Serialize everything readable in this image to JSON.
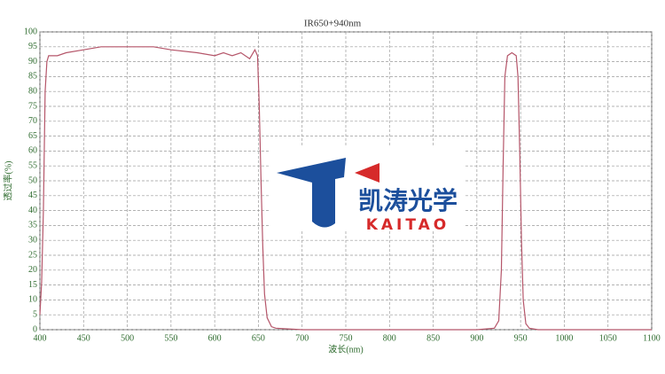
{
  "chart_data": {
    "type": "line",
    "title": "IR650+940nm",
    "x_label": "波长(nm)",
    "y_label": "透过率(%)",
    "x": [
      400,
      402,
      404,
      406,
      408,
      410,
      420,
      430,
      450,
      470,
      500,
      530,
      550,
      580,
      600,
      610,
      620,
      630,
      640,
      646,
      649,
      651,
      653,
      655,
      657,
      660,
      665,
      670,
      700,
      800,
      900,
      920,
      925,
      928,
      930,
      932,
      935,
      940,
      945,
      947,
      949,
      951,
      953,
      956,
      960,
      970,
      1000,
      1100
    ],
    "series": [
      {
        "name": "IR650+940nm",
        "color": "#b5566a",
        "values": [
          5,
          16,
          40,
          80,
          90,
          92,
          92,
          93,
          94,
          95,
          95,
          95,
          94,
          93,
          92,
          93,
          92,
          93,
          91,
          94,
          92,
          75,
          50,
          28,
          12,
          4,
          1,
          0.5,
          0,
          0,
          0,
          0.5,
          3,
          20,
          55,
          85,
          92,
          93,
          92,
          85,
          60,
          30,
          10,
          2,
          0.5,
          0,
          0,
          0
        ]
      }
    ],
    "xlim": [
      400,
      1100
    ],
    "ylim": [
      0,
      100
    ],
    "xticks": [
      400,
      450,
      500,
      550,
      600,
      650,
      700,
      750,
      800,
      850,
      900,
      950,
      1000,
      1050,
      1100
    ],
    "yticks": [
      0,
      5,
      10,
      15,
      20,
      25,
      30,
      35,
      40,
      45,
      50,
      55,
      60,
      65,
      70,
      75,
      80,
      85,
      90,
      95,
      100
    ],
    "grid": true
  },
  "logo": {
    "name_cn": "凯涛光学",
    "name_en": "KAITAO"
  }
}
